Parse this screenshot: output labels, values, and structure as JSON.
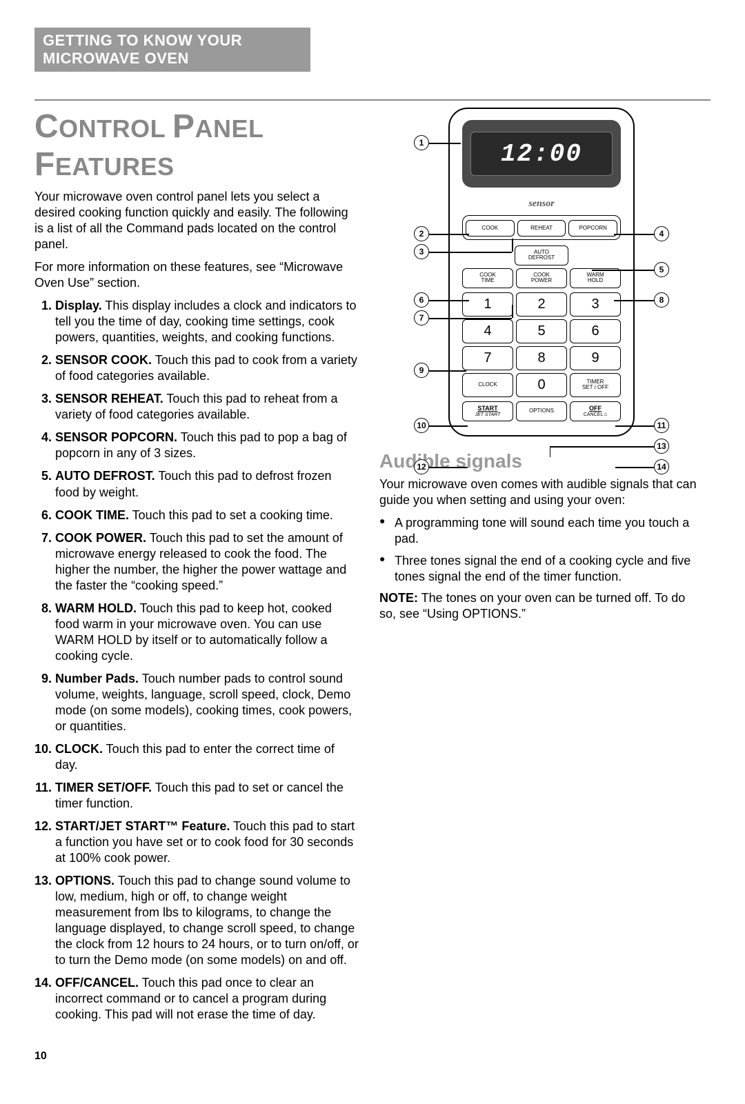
{
  "section_bar": "GETTING TO KNOW YOUR MICROWAVE OVEN",
  "title_parts": {
    "cap1": "C",
    "rest1": "ONTROL",
    "cap2": "P",
    "rest2": "ANEL",
    "cap3": "F",
    "rest3": "EATURES"
  },
  "intro1": "Your microwave oven control panel lets you select a desired cooking function quickly and easily. The following is a list of all the Command pads located on the control panel.",
  "intro2": "For more information on these features, see “Microwave Oven Use” section.",
  "features": [
    {
      "n": "1.",
      "term": "Display.",
      "text": " This display includes a clock and indicators to tell you the time of day, cooking time settings, cook powers, quantities, weights, and cooking functions."
    },
    {
      "n": "2.",
      "term": "SENSOR COOK.",
      "text": " Touch this pad to cook from a variety of food categories available."
    },
    {
      "n": "3.",
      "term": "SENSOR REHEAT.",
      "text": " Touch this pad to reheat from a variety of food categories available."
    },
    {
      "n": "4.",
      "term": "SENSOR POPCORN.",
      "text": " Touch this pad to pop a bag of popcorn in any of 3 sizes."
    },
    {
      "n": "5.",
      "term": "AUTO DEFROST.",
      "text": " Touch this pad to defrost frozen food by weight."
    },
    {
      "n": "6.",
      "term": "COOK TIME.",
      "text": " Touch this pad to set a cooking time."
    },
    {
      "n": "7.",
      "term": "COOK POWER.",
      "text": " Touch this pad to set the amount of microwave energy released to cook the food. The higher the number, the higher the power wattage and the faster the “cooking speed.”"
    },
    {
      "n": "8.",
      "term": "WARM HOLD.",
      "text": " Touch this pad to keep hot, cooked food warm in your microwave oven. You can use WARM HOLD by itself or to automatically follow a cooking cycle."
    },
    {
      "n": "9.",
      "term": "Number Pads.",
      "text": " Touch number pads to control sound volume, weights, language, scroll speed, clock, Demo mode (on some models), cooking times, cook powers, or quantities."
    },
    {
      "n": "10.",
      "term": "CLOCK.",
      "text": " Touch this pad to enter the correct time of day."
    },
    {
      "n": "11.",
      "term": "TIMER SET/OFF.",
      "text": " Touch this pad to set or cancel the timer function."
    },
    {
      "n": "12.",
      "term": "START/JET START™ Feature.",
      "text": " Touch this pad to start a function you have set or to cook food for 30 seconds at 100% cook power."
    },
    {
      "n": "13.",
      "term": "OPTIONS.",
      "text": " Touch this pad to change sound volume to low, medium, high or off, to change weight measurement from lbs to kilograms, to change the language displayed, to change scroll speed, to change the clock from 12 hours to 24 hours, or to turn on/off, or to turn the Demo mode (on some models) on and off."
    },
    {
      "n": "14.",
      "term": "OFF/CANCEL.",
      "text": " Touch this pad once to clear an incorrect command or to cancel a program during cooking. This pad will not erase the time of day."
    }
  ],
  "audible_title": "Audible signals",
  "audible_intro": "Your microwave oven comes with audible signals that can guide you when setting and using your oven:",
  "audible_bullets": [
    "A programming tone will sound each time you touch a pad.",
    "Three tones signal the end of a cooking cycle and five tones signal the end of the timer function."
  ],
  "audible_note_label": "NOTE:",
  "audible_note": " The tones on your oven can be turned off. To do so, see “Using OPTIONS.”",
  "page_number": "10",
  "panel": {
    "display_time": "12:00",
    "sensor_label": "sensor",
    "row1": [
      "COOK",
      "REHEAT",
      "POPCORN"
    ],
    "defrost": [
      "AUTO",
      "DEFROST"
    ],
    "row2": [
      [
        "COOK",
        "TIME"
      ],
      [
        "COOK",
        "POWER"
      ],
      [
        "WARM",
        "HOLD"
      ]
    ],
    "nums": [
      "1",
      "2",
      "3",
      "4",
      "5",
      "6",
      "7",
      "8",
      "9"
    ],
    "clock": "CLOCK",
    "zero": "0",
    "timer": [
      "TIMER",
      "SET / OFF"
    ],
    "start": [
      "START",
      "JET START"
    ],
    "options": "OPTIONS",
    "off": [
      "OFF",
      "CANCEL"
    ]
  },
  "callouts": [
    "1",
    "2",
    "3",
    "4",
    "5",
    "6",
    "7",
    "8",
    "9",
    "10",
    "11",
    "12",
    "13",
    "14"
  ]
}
